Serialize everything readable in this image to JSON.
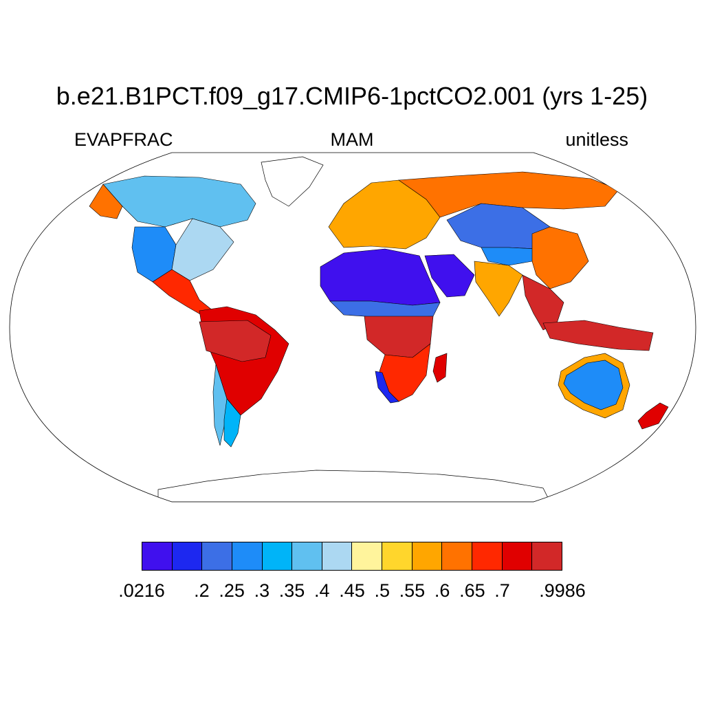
{
  "title": "b.e21.B1PCT.f09_g17.CMIP6-1pctCO2.001 (yrs 1-25)",
  "subtitle": {
    "left": "EVAPFRAC",
    "center": "MAM",
    "right": "unitless"
  },
  "colors": {
    "ocean": "#ffffff",
    "coastline": "#000000",
    "levels": [
      "#4010ee",
      "#1d28f0",
      "#3c6fe6",
      "#1e8cf8",
      "#00b4f8",
      "#60c0f0",
      "#acd8f2",
      "#fff49c",
      "#ffd62c",
      "#ffa600",
      "#ff7200",
      "#ff2800",
      "#e00000",
      "#d22828"
    ]
  },
  "colorbar": {
    "tick_labels": [
      ".0216",
      ".2",
      ".25",
      ".3",
      ".35",
      ".4",
      ".45",
      ".5",
      ".55",
      ".6",
      ".65",
      ".7",
      ".9986"
    ],
    "tick_boundaries": [
      0,
      2,
      3,
      4,
      5,
      6,
      7,
      8,
      9,
      10,
      11,
      12,
      14
    ]
  },
  "regions": [
    {
      "name": "Sahara",
      "level": 0
    },
    {
      "name": "Arabia",
      "level": 0
    },
    {
      "name": "Sahel",
      "level": 2
    },
    {
      "name": "Central Africa",
      "level": 13
    },
    {
      "name": "Southern Africa",
      "level": 11
    },
    {
      "name": "Namibia coast",
      "level": 1
    },
    {
      "name": "Madagascar",
      "level": 12
    },
    {
      "name": "Amazon",
      "level": 13
    },
    {
      "name": "Northern South America",
      "level": 12
    },
    {
      "name": "Patagonia",
      "level": 4
    },
    {
      "name": "Chile coast",
      "level": 5
    },
    {
      "name": "Western US",
      "level": 3
    },
    {
      "name": "Eastern US",
      "level": 6
    },
    {
      "name": "Canada",
      "level": 5
    },
    {
      "name": "Alaska",
      "level": 10
    },
    {
      "name": "Central America",
      "level": 11
    },
    {
      "name": "Europe",
      "level": 9
    },
    {
      "name": "Russia",
      "level": 10
    },
    {
      "name": "Central Asia",
      "level": 2
    },
    {
      "name": "Tibet",
      "level": 3
    },
    {
      "name": "India",
      "level": 9
    },
    {
      "name": "China",
      "level": 10
    },
    {
      "name": "Southeast Asia",
      "level": 13
    },
    {
      "name": "Indonesia",
      "level": 13
    },
    {
      "name": "Australia",
      "level": 3
    },
    {
      "name": "Australia coast",
      "level": 9
    },
    {
      "name": "New Zealand",
      "level": 12
    }
  ]
}
